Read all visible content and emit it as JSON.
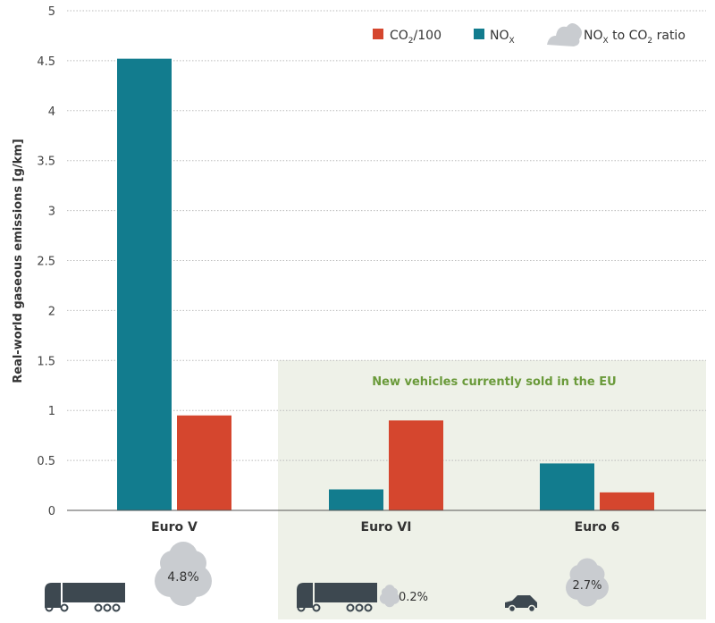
{
  "chart_data": {
    "type": "bar",
    "categories": [
      "Euro V",
      "Euro VI",
      "Euro 6"
    ],
    "series": [
      {
        "name": "NOx",
        "values": [
          4.52,
          0.21,
          0.47
        ],
        "color": "#127c8e"
      },
      {
        "name": "CO2/100",
        "values": [
          0.95,
          0.9,
          0.18
        ],
        "color": "#d5462e"
      }
    ],
    "ylabel": "Real-world gaseous emissions [g/km]",
    "ylim": [
      0,
      5
    ],
    "yticks": [
      "0",
      "0.5",
      "1",
      "1.5",
      "2",
      "2.5",
      "3",
      "3.5",
      "4",
      "4.5",
      "5"
    ],
    "grid": true,
    "legend_position": "top-right",
    "legend": {
      "co2": "CO",
      "co2_sub": "2",
      "co2_suffix": "/100",
      "nox": "NO",
      "nox_sub": "X",
      "ratio_a": "NO",
      "ratio_a_sub": "X",
      "ratio_b": " to CO",
      "ratio_b_sub": "2",
      "ratio_c": " ratio"
    },
    "annotation": "New vehicles currently sold in the EU",
    "annotation_color": "#6a9a3a",
    "shade_color": "#eef1e8",
    "ratios": [
      "4.8%",
      "0.2%",
      "2.7%"
    ],
    "ratio_icons": [
      "truck-icon",
      "truck-icon",
      "car-icon"
    ]
  }
}
